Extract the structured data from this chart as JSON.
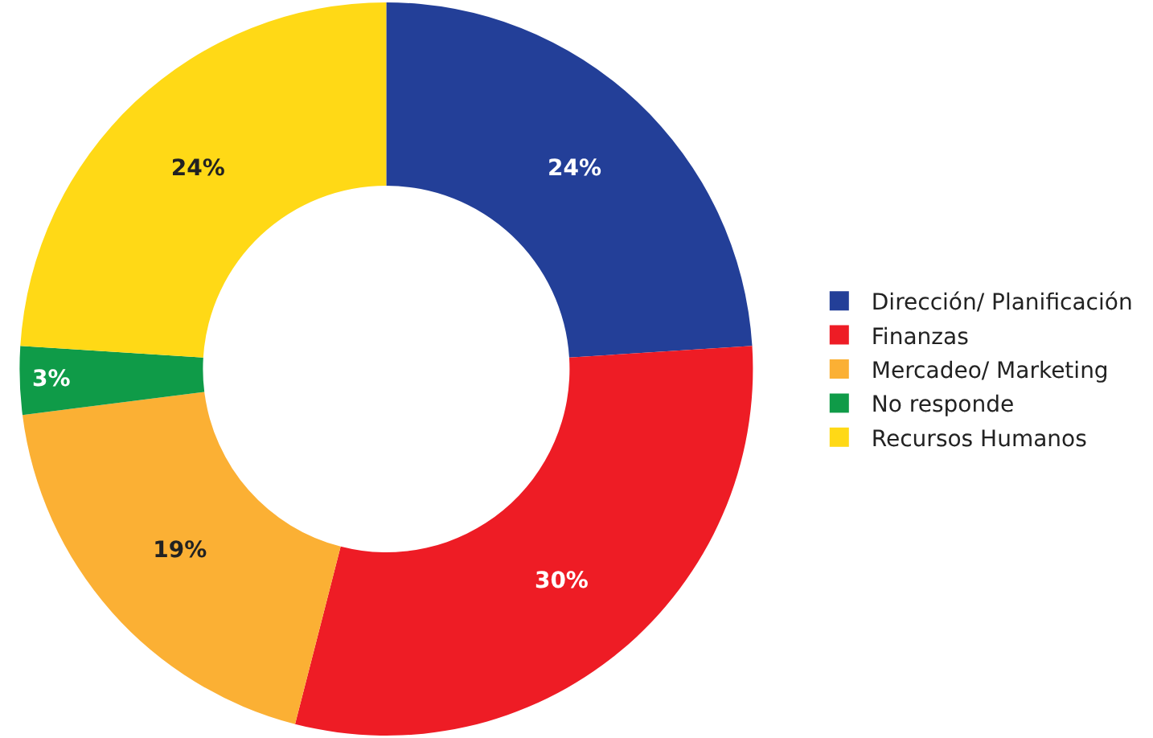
{
  "chart_data": {
    "type": "donut",
    "categories": [
      "Dirección/ Planificación",
      "Finanzas",
      "Mercadeo/ Marketing",
      "No responde",
      "Recursos Humanos"
    ],
    "values": [
      24,
      30,
      19,
      3,
      24
    ],
    "colors": [
      "#233f98",
      "#ee1c25",
      "#fbb034",
      "#0f9b48",
      "#ffd916"
    ],
    "value_labels": [
      "24%",
      "30%",
      "19%",
      "3%",
      "24%"
    ],
    "legend": "right"
  }
}
